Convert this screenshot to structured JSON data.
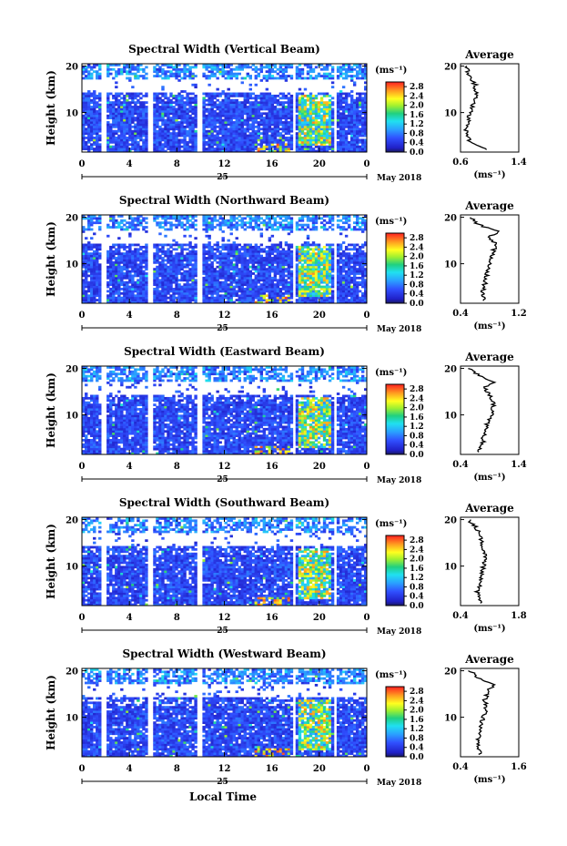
{
  "figure": {
    "xlabel": "Local Time",
    "date_label": "May 2018",
    "day_label": "25",
    "x_ticks": [
      "0",
      "4",
      "8",
      "12",
      "16",
      "20",
      "0"
    ],
    "y_ticks": [
      "20",
      "10"
    ],
    "colorbar_unit": "(ms⁻¹)",
    "colorbar_ticks": [
      "2.8",
      "2.4",
      "2.0",
      "1.6",
      "1.2",
      "0.8",
      "0.4",
      "0.0"
    ],
    "avg_title": "Average",
    "avg_xlabel": "(ms⁻¹)",
    "ylabel": "Height (km)"
  },
  "chart_data": [
    {
      "type": "heatmap",
      "title": "Spectral Width (Vertical Beam)",
      "xlabel": "Local Time",
      "ylabel": "Height (km)",
      "x_range_h": [
        0,
        24
      ],
      "y_range_km": [
        1.5,
        20.5
      ],
      "colorbar": {
        "label": "(ms⁻¹)",
        "range": [
          0.0,
          3.0
        ]
      },
      "data_gaps_h": [
        [
          1.7,
          2.0
        ],
        [
          5.6,
          5.9
        ],
        [
          9.8,
          10.1
        ],
        [
          17.7,
          18.1
        ],
        [
          21.2,
          21.5
        ]
      ],
      "elevated_region": {
        "x_h": [
          18.2,
          21.0
        ],
        "y_km": [
          3,
          14
        ],
        "peak_ms": 2.5
      },
      "average_profile": {
        "title": "Average",
        "xlabel": "(ms⁻¹)",
        "xlim": [
          0.6,
          1.4
        ],
        "xticks": [
          "0.6",
          "1.4"
        ],
        "height_km": [
          2,
          4,
          6,
          8,
          10,
          12,
          14,
          16,
          17,
          18,
          19,
          20
        ],
        "width_ms": [
          0.95,
          0.72,
          0.68,
          0.7,
          0.73,
          0.78,
          0.82,
          0.8,
          0.76,
          0.72,
          0.7,
          0.68
        ]
      }
    },
    {
      "type": "heatmap",
      "title": "Spectral Width (Northward Beam)",
      "xlabel": "Local Time",
      "ylabel": "Height (km)",
      "x_range_h": [
        0,
        24
      ],
      "y_range_km": [
        1.5,
        20.5
      ],
      "colorbar": {
        "label": "(ms⁻¹)",
        "range": [
          0.0,
          3.0
        ]
      },
      "data_gaps_h": [
        [
          1.7,
          2.0
        ],
        [
          5.6,
          5.9
        ],
        [
          9.8,
          10.1
        ],
        [
          17.7,
          18.1
        ],
        [
          21.2,
          21.5
        ]
      ],
      "elevated_region": {
        "x_h": [
          18.2,
          21.0
        ],
        "y_km": [
          3,
          14
        ],
        "peak_ms": 2.5
      },
      "average_profile": {
        "title": "Average",
        "xlabel": "(ms⁻¹)",
        "xlim": [
          0.4,
          1.2
        ],
        "xticks": [
          "0.4",
          "1.2"
        ],
        "height_km": [
          2,
          4,
          6,
          8,
          10,
          12,
          14,
          16,
          17,
          18,
          19,
          20
        ],
        "width_ms": [
          0.72,
          0.7,
          0.74,
          0.76,
          0.82,
          0.84,
          0.88,
          0.8,
          0.95,
          0.7,
          0.6,
          0.55
        ]
      }
    },
    {
      "type": "heatmap",
      "title": "Spectral Width (Eastward Beam)",
      "xlabel": "Local Time",
      "ylabel": "Height (km)",
      "x_range_h": [
        0,
        24
      ],
      "y_range_km": [
        1.5,
        20.5
      ],
      "colorbar": {
        "label": "(ms⁻¹)",
        "range": [
          0.0,
          3.0
        ]
      },
      "data_gaps_h": [
        [
          1.7,
          2.0
        ],
        [
          5.6,
          5.9
        ],
        [
          9.8,
          10.1
        ],
        [
          17.7,
          18.1
        ],
        [
          21.2,
          21.5
        ]
      ],
      "elevated_region": {
        "x_h": [
          18.2,
          21.0
        ],
        "y_km": [
          3,
          14
        ],
        "peak_ms": 2.5
      },
      "average_profile": {
        "title": "Average",
        "xlabel": "(ms⁻¹)",
        "xlim": [
          0.4,
          1.4
        ],
        "xticks": [
          "0.4",
          "1.4"
        ],
        "height_km": [
          2,
          4,
          6,
          8,
          10,
          12,
          14,
          16,
          17,
          18,
          19,
          20
        ],
        "width_ms": [
          0.72,
          0.78,
          0.8,
          0.85,
          0.92,
          0.98,
          0.9,
          0.82,
          0.95,
          0.8,
          0.65,
          0.55
        ]
      }
    },
    {
      "type": "heatmap",
      "title": "Spectral Width (Southward Beam)",
      "xlabel": "Local Time",
      "ylabel": "Height (km)",
      "x_range_h": [
        0,
        24
      ],
      "y_range_km": [
        1.5,
        20.5
      ],
      "colorbar": {
        "label": "(ms⁻¹)",
        "range": [
          0.0,
          3.0
        ]
      },
      "data_gaps_h": [
        [
          1.7,
          2.0
        ],
        [
          5.6,
          5.9
        ],
        [
          9.8,
          10.1
        ],
        [
          17.7,
          18.1
        ],
        [
          21.2,
          21.5
        ]
      ],
      "elevated_region": {
        "x_h": [
          18.2,
          21.0
        ],
        "y_km": [
          3,
          14
        ],
        "peak_ms": 2.5
      },
      "average_profile": {
        "title": "Average",
        "xlabel": "(ms⁻¹)",
        "xlim": [
          0.4,
          1.8
        ],
        "xticks": [
          "0.4",
          "1.8"
        ],
        "height_km": [
          2,
          4,
          6,
          8,
          10,
          12,
          14,
          16,
          17,
          18,
          19,
          20
        ],
        "width_ms": [
          0.9,
          0.8,
          0.85,
          0.9,
          0.95,
          1.0,
          0.95,
          0.9,
          0.85,
          0.8,
          0.7,
          0.6
        ]
      }
    },
    {
      "type": "heatmap",
      "title": "Spectral Width (Westward Beam)",
      "xlabel": "Local Time",
      "ylabel": "Height (km)",
      "x_range_h": [
        0,
        24
      ],
      "y_range_km": [
        1.5,
        20.5
      ],
      "colorbar": {
        "label": "(ms⁻¹)",
        "range": [
          0.0,
          3.0
        ]
      },
      "data_gaps_h": [
        [
          1.7,
          2.0
        ],
        [
          5.6,
          5.9
        ],
        [
          9.8,
          10.1
        ],
        [
          17.7,
          18.1
        ],
        [
          21.2,
          21.5
        ]
      ],
      "elevated_region": {
        "x_h": [
          18.2,
          21.0
        ],
        "y_km": [
          3,
          14
        ],
        "peak_ms": 2.5
      },
      "average_profile": {
        "title": "Average",
        "xlabel": "(ms⁻¹)",
        "xlim": [
          0.4,
          1.6
        ],
        "xticks": [
          "0.4",
          "1.6"
        ],
        "height_km": [
          2,
          4,
          6,
          8,
          10,
          12,
          14,
          16,
          17,
          18,
          19,
          20
        ],
        "width_ms": [
          0.8,
          0.75,
          0.78,
          0.82,
          0.88,
          0.92,
          0.9,
          1.0,
          1.1,
          0.85,
          0.7,
          0.6
        ]
      }
    }
  ]
}
